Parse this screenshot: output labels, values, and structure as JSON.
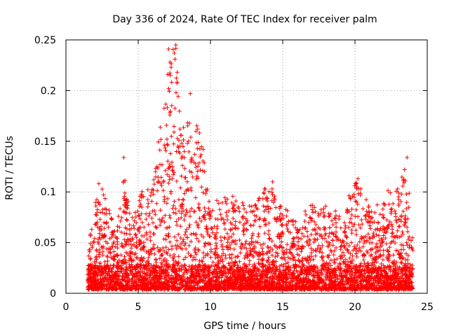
{
  "chart_data": {
    "type": "scatter",
    "title": "Day 336 of 2024, Rate Of TEC Index for receiver palm",
    "xlabel": "GPS time / hours",
    "ylabel": "ROTI / TECUs",
    "xlim": [
      0,
      25
    ],
    "ylim": [
      0,
      0.25
    ],
    "x_ticks": [
      "0",
      "5",
      "10",
      "15",
      "20",
      "25"
    ],
    "y_ticks": [
      "0",
      "0.05",
      "0.1",
      "0.15",
      "0.2",
      "0.25"
    ],
    "grid": true,
    "marker": "+",
    "color": "#ff0000",
    "data_x_range": [
      1.5,
      24.0
    ],
    "envelope": [
      {
        "x": 1.5,
        "max": 0.05
      },
      {
        "x": 2.0,
        "max": 0.09
      },
      {
        "x": 2.3,
        "max": 0.11
      },
      {
        "x": 3.0,
        "max": 0.087
      },
      {
        "x": 3.5,
        "max": 0.06
      },
      {
        "x": 4.0,
        "max": 0.134
      },
      {
        "x": 4.5,
        "max": 0.07
      },
      {
        "x": 5.0,
        "max": 0.1
      },
      {
        "x": 6.0,
        "max": 0.105
      },
      {
        "x": 6.8,
        "max": 0.2
      },
      {
        "x": 7.2,
        "max": 0.24
      },
      {
        "x": 7.6,
        "max": 0.245
      },
      {
        "x": 8.0,
        "max": 0.16
      },
      {
        "x": 8.6,
        "max": 0.197
      },
      {
        "x": 9.5,
        "max": 0.143
      },
      {
        "x": 10.0,
        "max": 0.087
      },
      {
        "x": 11.0,
        "max": 0.098
      },
      {
        "x": 12.0,
        "max": 0.095
      },
      {
        "x": 13.0,
        "max": 0.085
      },
      {
        "x": 14.0,
        "max": 0.11
      },
      {
        "x": 15.0,
        "max": 0.089
      },
      {
        "x": 16.0,
        "max": 0.07
      },
      {
        "x": 17.0,
        "max": 0.09
      },
      {
        "x": 18.0,
        "max": 0.086
      },
      {
        "x": 19.0,
        "max": 0.08
      },
      {
        "x": 20.2,
        "max": 0.115
      },
      {
        "x": 21.0,
        "max": 0.085
      },
      {
        "x": 22.0,
        "max": 0.09
      },
      {
        "x": 22.5,
        "max": 0.115
      },
      {
        "x": 23.0,
        "max": 0.105
      },
      {
        "x": 23.6,
        "max": 0.135
      },
      {
        "x": 24.0,
        "max": 0.06
      }
    ],
    "outliers": [
      {
        "x": 4.0,
        "y": 0.134
      },
      {
        "x": 7.1,
        "y": 0.241
      },
      {
        "x": 7.2,
        "y": 0.228
      },
      {
        "x": 7.6,
        "y": 0.245
      },
      {
        "x": 7.7,
        "y": 0.218
      },
      {
        "x": 8.6,
        "y": 0.197
      },
      {
        "x": 9.5,
        "y": 0.142
      },
      {
        "x": 14.3,
        "y": 0.11
      },
      {
        "x": 20.2,
        "y": 0.113
      },
      {
        "x": 23.6,
        "y": 0.134
      }
    ]
  }
}
